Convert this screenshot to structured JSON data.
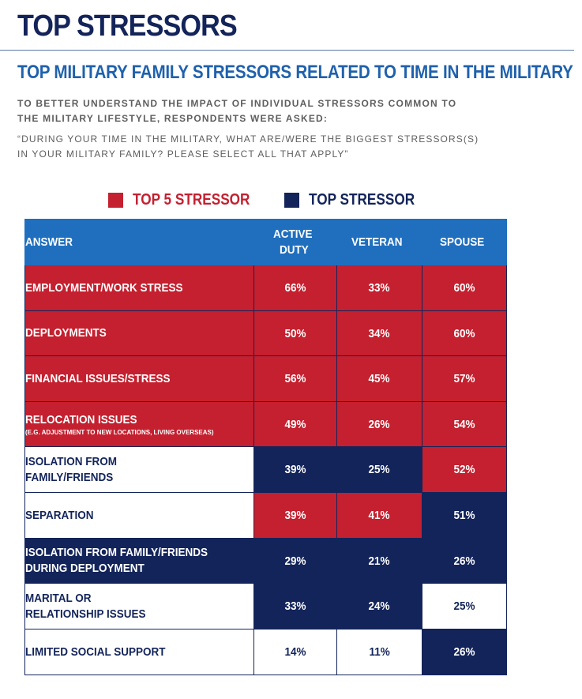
{
  "title": "TOP STRESSORS",
  "subtitle": "TOP MILITARY FAMILY STRESSORS RELATED TO TIME IN THE MILITARY",
  "intro": [
    "TO BETTER UNDERSTAND THE IMPACT OF INDIVIDUAL STRESSORS COMMON TO",
    "THE MILITARY LIFESTYLE, RESPONDENTS WERE ASKED:"
  ],
  "question": [
    "“DURING YOUR TIME IN THE MILITARY, WHAT ARE/WERE THE BIGGEST STRESSORS(S)",
    "IN YOUR MILITARY FAMILY? PLEASE SELECT ALL THAT APPLY”"
  ],
  "legend": {
    "top5": {
      "label": "TOP 5 STRESSOR",
      "color": "#c4202f"
    },
    "top": {
      "label": "TOP STRESSOR",
      "color": "#13245a"
    }
  },
  "table": {
    "headers": {
      "answer": "ANSWER",
      "active": [
        "ACTIVE",
        "DUTY"
      ],
      "veteran": "VETERAN",
      "spouse": "SPOUSE"
    },
    "rows": [
      {
        "answer": [
          "EMPLOYMENT/WORK STRESS"
        ],
        "note": "",
        "active": "66%",
        "veteran": "33%",
        "spouse": "60%",
        "styles": [
          "red",
          "red",
          "red",
          "red"
        ]
      },
      {
        "answer": [
          "DEPLOYMENTS"
        ],
        "note": "",
        "active": "50%",
        "veteran": "34%",
        "spouse": "60%",
        "styles": [
          "red",
          "red",
          "red",
          "red"
        ]
      },
      {
        "answer": [
          "FINANCIAL ISSUES/STRESS"
        ],
        "note": "",
        "active": "56%",
        "veteran": "45%",
        "spouse": "57%",
        "styles": [
          "red",
          "red",
          "red",
          "red"
        ]
      },
      {
        "answer": [
          "RELOCATION ISSUES"
        ],
        "note": "(E.G. ADJUSTMENT TO NEW LOCATIONS, LIVING OVERSEAS)",
        "active": "49%",
        "veteran": "26%",
        "spouse": "54%",
        "styles": [
          "red",
          "red",
          "red",
          "red"
        ]
      },
      {
        "answer": [
          "ISOLATION FROM",
          "FAMILY/FRIENDS"
        ],
        "note": "",
        "active": "39%",
        "veteran": "25%",
        "spouse": "52%",
        "styles": [
          "white",
          "navy",
          "navy",
          "red"
        ]
      },
      {
        "answer": [
          "SEPARATION"
        ],
        "note": "",
        "active": "39%",
        "veteran": "41%",
        "spouse": "51%",
        "styles": [
          "white",
          "red",
          "red",
          "navy"
        ]
      },
      {
        "answer": [
          "ISOLATION FROM FAMILY/FRIENDS",
          "DURING DEPLOYMENT"
        ],
        "note": "",
        "active": "29%",
        "veteran": "21%",
        "spouse": "26%",
        "styles": [
          "navy",
          "navy",
          "navy",
          "navy"
        ]
      },
      {
        "answer": [
          "MARITAL OR",
          "RELATIONSHIP ISSUES"
        ],
        "note": "",
        "active": "33%",
        "veteran": "24%",
        "spouse": "25%",
        "styles": [
          "white",
          "navy",
          "navy",
          "white"
        ]
      },
      {
        "answer": [
          "LIMITED SOCIAL SUPPORT"
        ],
        "note": "",
        "active": "14%",
        "veteran": "11%",
        "spouse": "26%",
        "styles": [
          "white",
          "white",
          "white",
          "navy"
        ]
      }
    ]
  }
}
